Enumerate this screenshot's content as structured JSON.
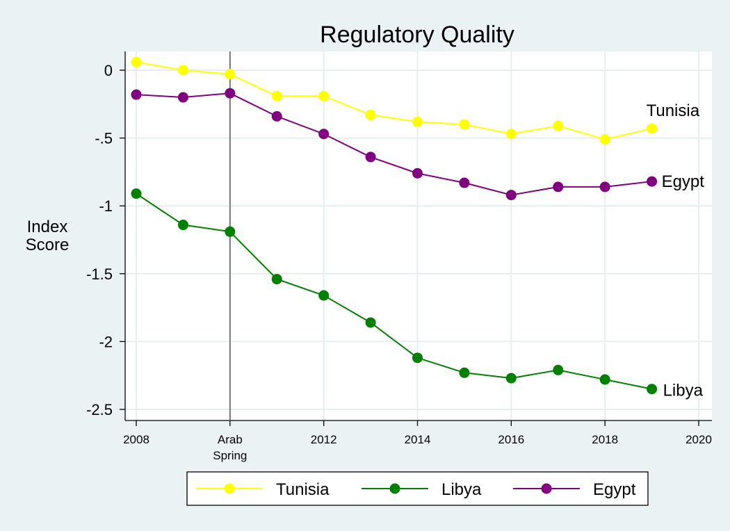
{
  "chart_data": {
    "type": "line",
    "title": "Regulatory Quality",
    "ylabel": [
      "Index",
      "Score"
    ],
    "xlim": [
      2008,
      2020
    ],
    "ylim": [
      -2.5,
      0
    ],
    "y_ticks": [
      0,
      -0.5,
      -1,
      -1.5,
      -2,
      -2.5
    ],
    "y_tick_labels": [
      "0",
      "-.5",
      "-1",
      "-1.5",
      "-2",
      "-2.5"
    ],
    "x_ticks": [
      {
        "value": 2008,
        "label": "2008"
      },
      {
        "value": 2010,
        "label": "Arab",
        "label2": "Spring"
      },
      {
        "value": 2012,
        "label": "2012"
      },
      {
        "value": 2014,
        "label": "2014"
      },
      {
        "value": 2016,
        "label": "2016"
      },
      {
        "value": 2018,
        "label": "2018"
      },
      {
        "value": 2020,
        "label": "2020"
      }
    ],
    "reference_line_x": 2010,
    "x": [
      2008,
      2009,
      2010,
      2011,
      2012,
      2013,
      2014,
      2015,
      2016,
      2017,
      2018,
      2019
    ],
    "grid": true,
    "legend_position": "bottom",
    "series": [
      {
        "name": "Tunisia",
        "color": "#ffff00",
        "end_label": "Tunisia",
        "values": [
          0.06,
          0.0,
          -0.03,
          -0.19,
          -0.19,
          -0.33,
          -0.38,
          -0.4,
          -0.47,
          -0.41,
          -0.51,
          -0.43
        ]
      },
      {
        "name": "Libya",
        "color": "#008000",
        "end_label": "Libya",
        "values": [
          -0.91,
          -1.14,
          -1.19,
          -1.54,
          -1.66,
          -1.86,
          -2.12,
          -2.23,
          -2.27,
          -2.21,
          -2.28,
          -2.35
        ]
      },
      {
        "name": "Egypt",
        "color": "#800080",
        "end_label": "Egypt",
        "values": [
          -0.18,
          -0.2,
          -0.17,
          -0.34,
          -0.47,
          -0.64,
          -0.76,
          -0.83,
          -0.92,
          -0.86,
          -0.86,
          -0.82
        ]
      }
    ]
  }
}
